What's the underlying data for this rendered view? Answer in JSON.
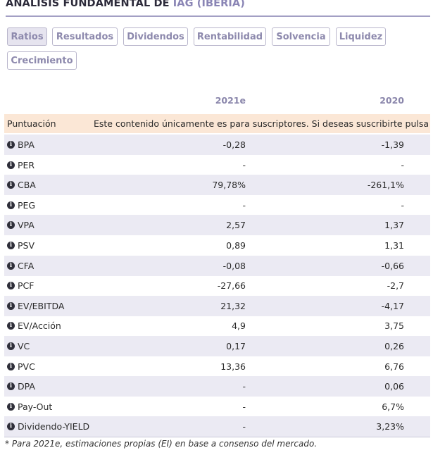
{
  "header": {
    "title_prefix": "ANÁLISIS FUNDAMENTAL DE",
    "title_accent": "IAG (IBERIA)"
  },
  "tabs": [
    {
      "label": "Ratios",
      "active": true
    },
    {
      "label": "Resultados",
      "active": false
    },
    {
      "label": "Dividendos",
      "active": false
    },
    {
      "label": "Rentabilidad",
      "active": false
    },
    {
      "label": "Solvencia",
      "active": false
    },
    {
      "label": "Liquidez",
      "active": false
    },
    {
      "label": "Crecimiento",
      "active": false
    }
  ],
  "table": {
    "columns": [
      "2021e",
      "2020"
    ],
    "score_row": {
      "label": "Puntuación",
      "message": "Este contenido únicamente es para suscriptores. Si deseas suscribirte pulsa"
    },
    "rows": [
      {
        "name": "BPA",
        "v2021e": "-0,28",
        "v2020": "-1,39"
      },
      {
        "name": "PER",
        "v2021e": "-",
        "v2020": "-"
      },
      {
        "name": "CBA",
        "v2021e": "79,78%",
        "v2020": "-261,1%"
      },
      {
        "name": "PEG",
        "v2021e": "-",
        "v2020": "-"
      },
      {
        "name": "VPA",
        "v2021e": "2,57",
        "v2020": "1,37"
      },
      {
        "name": "PSV",
        "v2021e": "0,89",
        "v2020": "1,31"
      },
      {
        "name": "CFA",
        "v2021e": "-0,08",
        "v2020": "-0,66"
      },
      {
        "name": "PCF",
        "v2021e": "-27,66",
        "v2020": "-2,7"
      },
      {
        "name": "EV/EBITDA",
        "v2021e": "21,32",
        "v2020": "-4,17"
      },
      {
        "name": "EV/Acción",
        "v2021e": "4,9",
        "v2020": "3,75"
      },
      {
        "name": "VC",
        "v2021e": "0,17",
        "v2020": "0,26"
      },
      {
        "name": "PVC",
        "v2021e": "13,36",
        "v2020": "6,76"
      },
      {
        "name": "DPA",
        "v2021e": "-",
        "v2020": "0,06"
      },
      {
        "name": "Pay-Out",
        "v2021e": "-",
        "v2020": "6,7%"
      },
      {
        "name": "Dividendo-YIELD",
        "v2021e": "-",
        "v2020": "3,23%"
      }
    ]
  },
  "footnote": "* Para 2021e, estimaciones propias (EI) en base a consenso del mercado.",
  "colors": {
    "accent": "#8a85b5",
    "score_band": "#fbe7d6",
    "alt_row": "#ebeaf3"
  }
}
